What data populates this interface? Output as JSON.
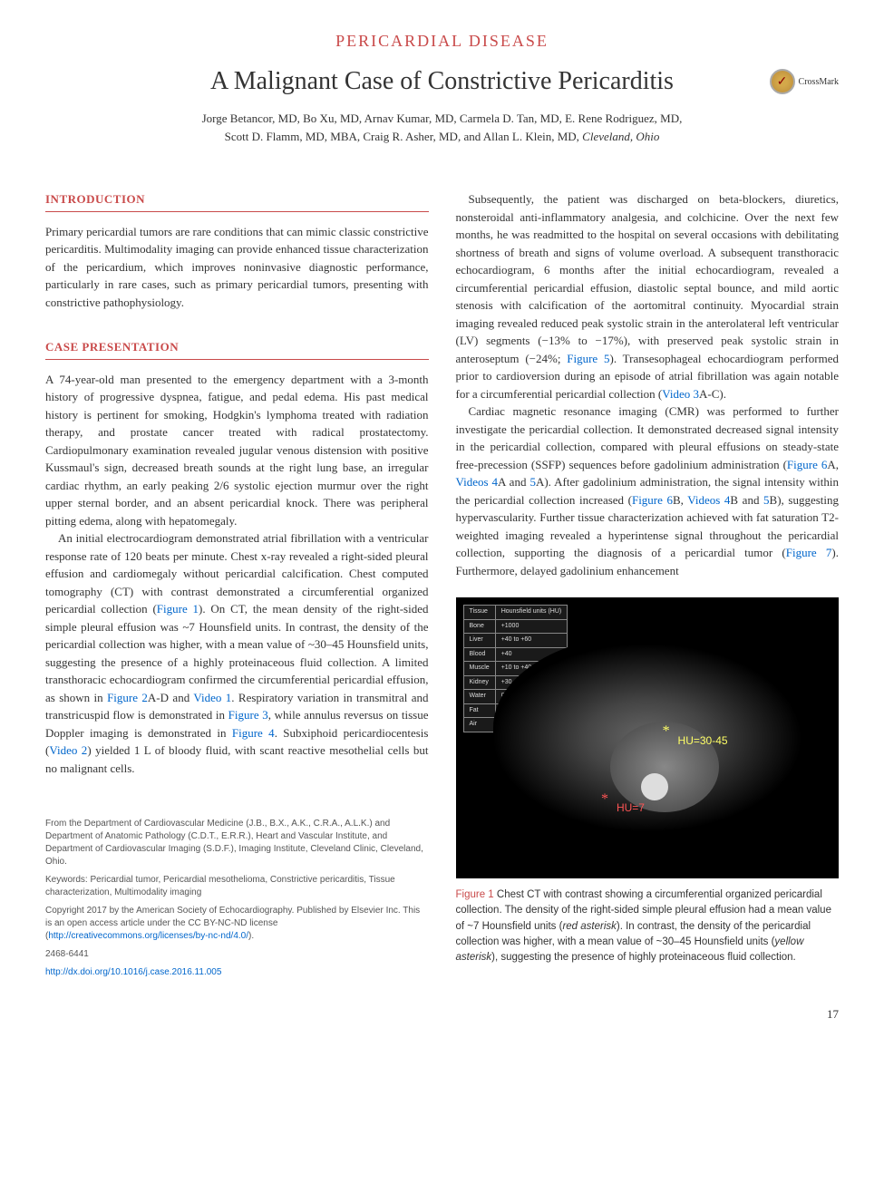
{
  "header": {
    "section_label": "PERICARDIAL DISEASE",
    "title": "A Malignant Case of Constrictive Pericarditis",
    "crossmark_label": "CrossMark",
    "authors_line1": "Jorge Betancor, MD, Bo Xu, MD, Arnav Kumar, MD, Carmela D. Tan, MD, E. Rene Rodriguez, MD,",
    "authors_line2": "Scott D. Flamm, MD, MBA, Craig R. Asher, MD, and Allan L. Klein, MD, ",
    "location": "Cleveland, Ohio"
  },
  "left_column": {
    "intro_heading": "INTRODUCTION",
    "intro_body": "Primary pericardial tumors are rare conditions that can mimic classic constrictive pericarditis. Multimodality imaging can provide enhanced tissue characterization of the pericardium, which improves noninvasive diagnostic performance, particularly in rare cases, such as primary pericardial tumors, presenting with constrictive pathophysiology.",
    "case_heading": "CASE PRESENTATION",
    "case_p1": "A 74-year-old man presented to the emergency department with a 3-month history of progressive dyspnea, fatigue, and pedal edema. His past medical history is pertinent for smoking, Hodgkin's lymphoma treated with radiation therapy, and prostate cancer treated with radical prostatectomy. Cardiopulmonary examination revealed jugular venous distension with positive Kussmaul's sign, decreased breath sounds at the right lung base, an irregular cardiac rhythm, an early peaking 2/6 systolic ejection murmur over the right upper sternal border, and an absent pericardial knock. There was peripheral pitting edema, along with hepatomegaly.",
    "case_p2_a": "An initial electrocardiogram demonstrated atrial fibrillation with a ventricular response rate of 120 beats per minute. Chest x-ray revealed a right-sided pleural effusion and cardiomegaly without pericardial calcification. Chest computed tomography (CT) with contrast demonstrated a circumferential organized pericardial collection (",
    "fig1_ref": "Figure 1",
    "case_p2_b": "). On CT, the mean density of the right-sided simple pleural effusion was ~7 Hounsfield units. In contrast, the density of the pericardial collection was higher, with a mean value of ~30–45 Hounsfield units, suggesting the presence of a highly proteinaceous fluid collection. A limited transthoracic echocardiogram confirmed the circumferential pericardial effusion, as shown in ",
    "fig2_ref": "Figure 2",
    "case_p2_c": "A-D and ",
    "vid1_ref": "Video 1",
    "case_p2_d": ". Respiratory variation in transmitral and transtricuspid flow is demonstrated in ",
    "fig3_ref": "Figure 3",
    "case_p2_e": ", while annulus reversus on tissue Doppler imaging is demonstrated in ",
    "fig4_ref": "Figure 4",
    "case_p2_f": ". Subxiphoid pericardiocentesis (",
    "vid2_ref": "Video 2",
    "case_p2_g": ") yielded 1 L of bloody fluid, with scant reactive mesothelial cells but no malignant cells."
  },
  "footer": {
    "affil": "From the Department of Cardiovascular Medicine (J.B., B.X., A.K., C.R.A., A.L.K.) and Department of Anatomic Pathology (C.D.T., E.R.R.), Heart and Vascular Institute, and Department of Cardiovascular Imaging (S.D.F.), Imaging Institute, Cleveland Clinic, Cleveland, Ohio.",
    "keywords": "Keywords: Pericardial tumor, Pericardial mesothelioma, Constrictive pericarditis, Tissue characterization, Multimodality imaging",
    "copyright_a": "Copyright 2017 by the American Society of Echocardiography. Published by Elsevier Inc. This is an open access article under the CC BY-NC-ND license (",
    "cc_link": "http://creativecommons.org/licenses/by-nc-nd/4.0/",
    "copyright_b": ").",
    "issn": "2468-6441",
    "doi": "http://dx.doi.org/10.1016/j.case.2016.11.005"
  },
  "right_column": {
    "p1": "Subsequently, the patient was discharged on beta-blockers, diuretics, nonsteroidal anti-inflammatory analgesia, and colchicine. Over the next few months, he was readmitted to the hospital on several occasions with debilitating shortness of breath and signs of volume overload. A subsequent transthoracic echocardiogram, 6 months after the initial echocardiogram, revealed a circumferential pericardial effusion, diastolic septal bounce, and mild aortic stenosis with calcification of the aortomitral continuity. Myocardial strain imaging revealed reduced peak systolic strain in the anterolateral left ventricular (LV) segments (−13% to −17%), with preserved peak systolic strain in anteroseptum (−24%; ",
    "fig5_ref": "Figure 5",
    "p1_b": "). Transesophageal echocardiogram performed prior to cardioversion during an episode of atrial fibrillation was again notable for a circumferential pericardial collection (",
    "vid3_ref": "Video 3",
    "p1_c": "A-C).",
    "p2_a": "Cardiac magnetic resonance imaging (CMR) was performed to further investigate the pericardial collection. It demonstrated decreased signal intensity in the pericardial collection, compared with pleural effusions on steady-state free-precession (SSFP) sequences before gadolinium administration (",
    "fig6a_ref": "Figure 6",
    "p2_b": "A, ",
    "vid4a_ref": "Videos 4",
    "p2_c": "A and ",
    "vid5a_ref": "5",
    "p2_d": "A). After gadolinium administration, the signal intensity within the pericardial collection increased (",
    "fig6b_ref": "Figure 6",
    "p2_e": "B, ",
    "vid4b_ref": "Videos 4",
    "p2_f": "B and ",
    "vid5b_ref": "5",
    "p2_g": "B), suggesting hypervascularity. Further tissue characterization achieved with fat saturation T2-weighted imaging revealed a hyperintense signal throughout the pericardial collection, supporting the diagnosis of a pericardial tumor (",
    "fig7_ref": "Figure 7",
    "p2_h": "). Furthermore, delayed gadolinium enhancement"
  },
  "figure1": {
    "legend_header_tissue": "Tissue",
    "legend_header_hu": "Hounsfield units (HU)",
    "legend_rows": [
      [
        "Bone",
        "+1000"
      ],
      [
        "Liver",
        "+40 to +60"
      ],
      [
        "Blood",
        "+40"
      ],
      [
        "Muscle",
        "+10 to +40"
      ],
      [
        "Kidney",
        "+30"
      ],
      [
        "Water",
        "0"
      ],
      [
        "Fat",
        "−50 to −100"
      ],
      [
        "Air",
        "−1000"
      ]
    ],
    "hu_label_yellow": "HU=30-45",
    "hu_label_red": "HU=7",
    "caption_label": "Figure 1",
    "caption_a": "  Chest CT with contrast showing a circumferential organized pericardial collection. The density of the right-sided simple pleural effusion had a mean value of ~7 Hounsfield units (",
    "caption_red": "red asterisk",
    "caption_b": "). In contrast, the density of the pericardial collection was higher, with a mean value of ~30–45 Hounsfield units (",
    "caption_yellow": "yellow asterisk",
    "caption_c": "), suggesting the presence of highly proteinaceous fluid collection.",
    "colors": {
      "yellow": "#ffff66",
      "red": "#ff5555",
      "background": "#000000"
    }
  },
  "page_number": "17"
}
